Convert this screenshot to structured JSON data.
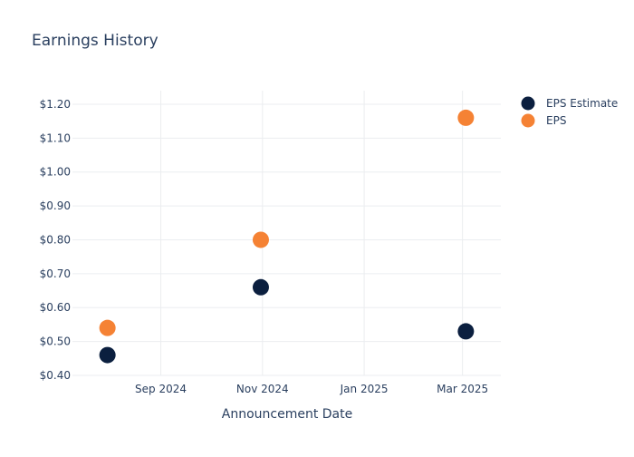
{
  "chart_data": {
    "type": "scatter",
    "title": "Earnings History",
    "xlabel": "Announcement Date",
    "ylabel": "",
    "x_ticks": [
      {
        "date": "2024-09-01",
        "label": "Sep 2024"
      },
      {
        "date": "2024-11-01",
        "label": "Nov 2024"
      },
      {
        "date": "2025-01-01",
        "label": "Jan 2025"
      },
      {
        "date": "2025-03-01",
        "label": "Mar 2025"
      }
    ],
    "xlim": [
      "2024-07-10",
      "2025-03-24"
    ],
    "ylim": [
      0.4,
      1.24
    ],
    "y_ticks": [
      0.4,
      0.5,
      0.6,
      0.7,
      0.8,
      0.9,
      1.0,
      1.1,
      1.2
    ],
    "y_tick_labels": [
      "$0.40",
      "$0.50",
      "$0.60",
      "$0.70",
      "$0.80",
      "$0.90",
      "$1.00",
      "$1.10",
      "$1.20"
    ],
    "grid": true,
    "legend_position": "top-right",
    "series": [
      {
        "name": "EPS Estimate",
        "color": "#0b1f3f",
        "points": [
          {
            "x": "2024-07-31",
            "y": 0.46
          },
          {
            "x": "2024-10-31",
            "y": 0.66
          },
          {
            "x": "2025-03-03",
            "y": 0.53
          }
        ]
      },
      {
        "name": "EPS",
        "color": "#f58234",
        "points": [
          {
            "x": "2024-07-31",
            "y": 0.54
          },
          {
            "x": "2024-10-31",
            "y": 0.8
          },
          {
            "x": "2025-03-03",
            "y": 1.16
          }
        ]
      }
    ]
  }
}
